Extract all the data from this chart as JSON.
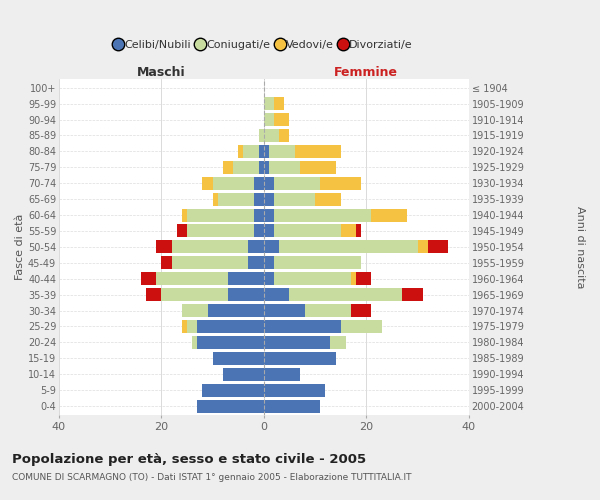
{
  "age_groups": [
    "100+",
    "95-99",
    "90-94",
    "85-89",
    "80-84",
    "75-79",
    "70-74",
    "65-69",
    "60-64",
    "55-59",
    "50-54",
    "45-49",
    "40-44",
    "35-39",
    "30-34",
    "25-29",
    "20-24",
    "15-19",
    "10-14",
    "5-9",
    "0-4"
  ],
  "birth_years": [
    "≤ 1904",
    "1905-1909",
    "1910-1914",
    "1915-1919",
    "1920-1924",
    "1925-1929",
    "1930-1934",
    "1935-1939",
    "1940-1944",
    "1945-1949",
    "1950-1954",
    "1955-1959",
    "1960-1964",
    "1965-1969",
    "1970-1974",
    "1975-1979",
    "1980-1984",
    "1985-1989",
    "1990-1994",
    "1995-1999",
    "2000-2004"
  ],
  "colors": {
    "celibi": "#4a74b4",
    "coniugati": "#c8dca0",
    "vedovi": "#f5c242",
    "divorziati": "#cc1010"
  },
  "maschi": {
    "celibi": [
      0,
      0,
      0,
      0,
      1,
      1,
      2,
      2,
      2,
      2,
      3,
      3,
      7,
      7,
      11,
      13,
      13,
      10,
      8,
      12,
      13
    ],
    "coniugati": [
      0,
      0,
      0,
      1,
      3,
      5,
      8,
      7,
      13,
      13,
      15,
      15,
      14,
      13,
      5,
      2,
      1,
      0,
      0,
      0,
      0
    ],
    "vedovi": [
      0,
      0,
      0,
      0,
      1,
      2,
      2,
      1,
      1,
      0,
      0,
      0,
      0,
      0,
      0,
      1,
      0,
      0,
      0,
      0,
      0
    ],
    "divorziati": [
      0,
      0,
      0,
      0,
      0,
      0,
      0,
      0,
      0,
      2,
      3,
      2,
      3,
      3,
      0,
      0,
      0,
      0,
      0,
      0,
      0
    ]
  },
  "femmine": {
    "celibi": [
      0,
      0,
      0,
      0,
      1,
      1,
      2,
      2,
      2,
      2,
      3,
      2,
      2,
      5,
      8,
      15,
      13,
      14,
      7,
      12,
      11
    ],
    "coniugati": [
      0,
      2,
      2,
      3,
      5,
      6,
      9,
      8,
      19,
      13,
      27,
      17,
      15,
      22,
      9,
      8,
      3,
      0,
      0,
      0,
      0
    ],
    "vedovi": [
      0,
      2,
      3,
      2,
      9,
      7,
      8,
      5,
      7,
      3,
      2,
      0,
      1,
      0,
      0,
      0,
      0,
      0,
      0,
      0,
      0
    ],
    "divorziati": [
      0,
      0,
      0,
      0,
      0,
      0,
      0,
      0,
      0,
      1,
      4,
      0,
      3,
      4,
      4,
      0,
      0,
      0,
      0,
      0,
      0
    ]
  },
  "xlim": 40,
  "title": "Popolazione per età, sesso e stato civile - 2005",
  "subtitle": "COMUNE DI SCARMAGNO (TO) - Dati ISTAT 1° gennaio 2005 - Elaborazione TUTTITALIA.IT",
  "ylabel_left": "Fasce di età",
  "ylabel_right": "Anni di nascita",
  "xlabel_maschi": "Maschi",
  "xlabel_femmine": "Femmine",
  "legend_labels": [
    "Celibi/Nubili",
    "Coniugati/e",
    "Vedovi/e",
    "Divorziati/e"
  ],
  "bg_color": "#eeeeee",
  "plot_bg_color": "#ffffff"
}
